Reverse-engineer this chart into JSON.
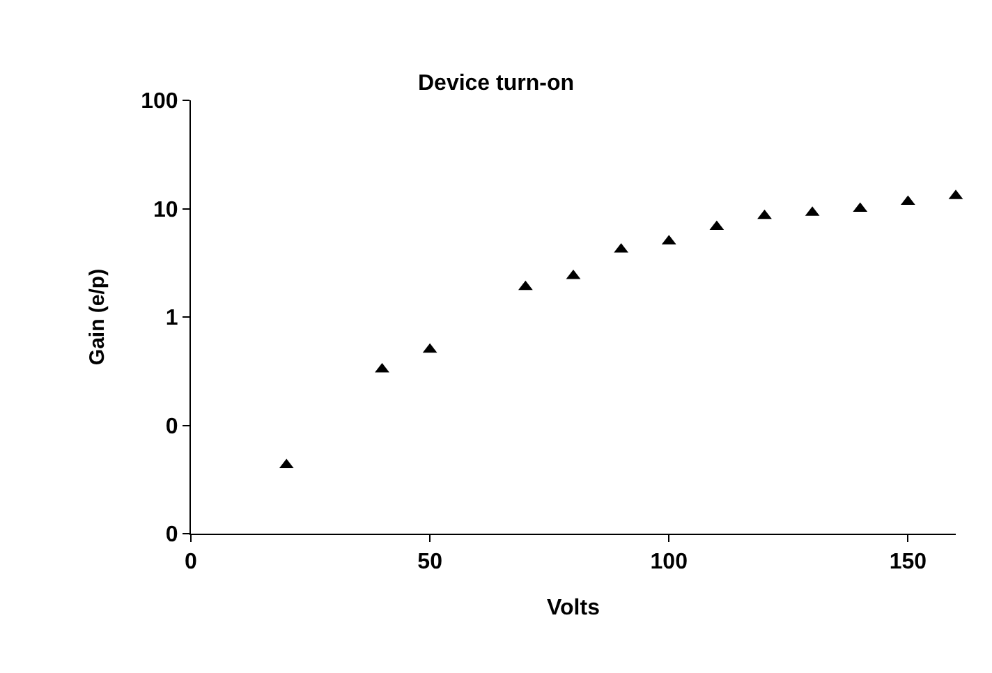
{
  "chart_data": {
    "type": "scatter",
    "title": "Device turn-on",
    "xlabel": "Volts",
    "ylabel": "Gain (e/p)",
    "x": [
      20,
      40,
      50,
      70,
      80,
      90,
      100,
      110,
      120,
      130,
      140,
      150,
      160
    ],
    "series": [
      {
        "color": "#000000",
        "values": [
          0.043,
          0.33,
          0.5,
          1.9,
          2.4,
          4.2,
          5.0,
          6.8,
          8.6,
          9.2,
          10,
          11.6,
          13.1
        ]
      }
    ],
    "xlim": [
      0,
      160
    ],
    "xticks": [
      0,
      50,
      100,
      150
    ],
    "ylim": [
      0.01,
      100
    ],
    "yticks": [
      {
        "value": 0.01,
        "label": "0"
      },
      {
        "value": 0.1,
        "label": "0"
      },
      1,
      10,
      100
    ],
    "log": "y",
    "grid": false,
    "marker": "triangle"
  }
}
